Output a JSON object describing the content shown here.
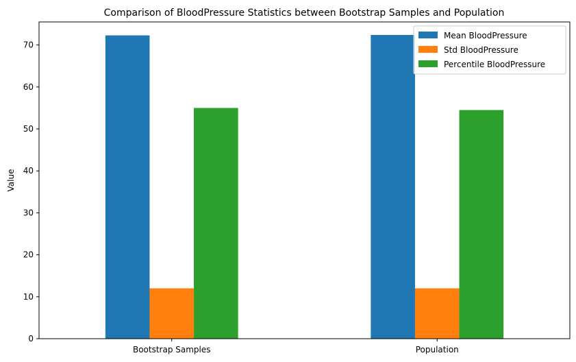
{
  "chart_data": {
    "type": "bar",
    "title": "Comparison of BloodPressure Statistics between Bootstrap Samples and Population",
    "xlabel": "",
    "ylabel": "Value",
    "categories": [
      "Bootstrap Samples",
      "Population"
    ],
    "series": [
      {
        "name": "Mean BloodPressure",
        "values": [
          72.3,
          72.4
        ],
        "color": "#1f77b4"
      },
      {
        "name": "Std BloodPressure",
        "values": [
          12.0,
          12.0
        ],
        "color": "#ff7f0e"
      },
      {
        "name": "Percentile BloodPressure",
        "values": [
          55.0,
          54.5
        ],
        "color": "#2ca02c"
      }
    ],
    "ylim": [
      0,
      75.5
    ],
    "yticks": [
      0,
      10,
      20,
      30,
      40,
      50,
      60,
      70
    ],
    "grid": false,
    "legend": "top-right"
  }
}
